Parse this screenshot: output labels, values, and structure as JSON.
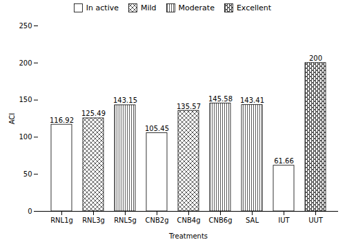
{
  "chart_data": {
    "type": "bar",
    "categories": [
      "RNL1g",
      "RNL3g",
      "RNL5g",
      "CNB2g",
      "CNB4g",
      "CNB6g",
      "SAL",
      "IUT",
      "UUT"
    ],
    "series": [
      {
        "name": "In active",
        "values": [
          116.92,
          null,
          null,
          105.45,
          null,
          null,
          null,
          61.66,
          null
        ]
      },
      {
        "name": "Mild",
        "values": [
          null,
          125.49,
          null,
          null,
          135.57,
          null,
          null,
          null,
          null
        ]
      },
      {
        "name": "Moderate",
        "values": [
          null,
          null,
          143.15,
          null,
          null,
          145.58,
          143.41,
          null,
          null
        ]
      },
      {
        "name": "Excellent",
        "values": [
          null,
          null,
          null,
          null,
          null,
          null,
          null,
          null,
          200
        ]
      }
    ],
    "stacked": true,
    "xlabel": "Treatments",
    "ylabel": "ACI",
    "ylim": [
      0,
      250
    ],
    "yticks": [
      0,
      50,
      100,
      150,
      200,
      250
    ],
    "data_labels": true,
    "legend": "top"
  }
}
